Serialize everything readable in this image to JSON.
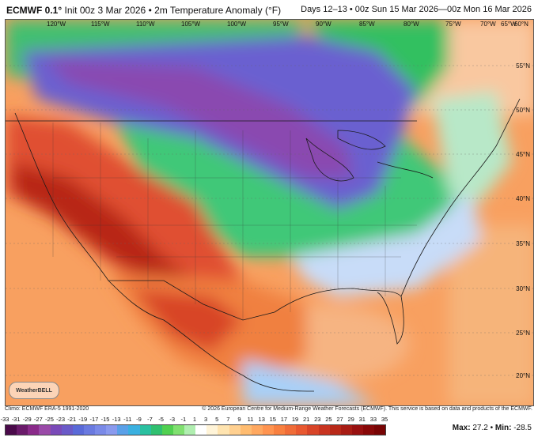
{
  "header": {
    "model": "ECMWF 0.1°",
    "init": "Init 00z 3 Mar 2026",
    "field": "2m Temperature Anomaly (°F)",
    "valid": "Days 12–13 • 00z Sun 15 Mar 2026—00z Mon 16 Mar 2026"
  },
  "map": {
    "lon_labels": [
      "120°W",
      "115°W",
      "110°W",
      "105°W",
      "100°W",
      "95°W",
      "90°W",
      "85°W",
      "80°W",
      "75°W",
      "70°W",
      "65°W",
      "60°N"
    ],
    "lat_labels": [
      "55°N",
      "50°N",
      "45°N",
      "40°N",
      "35°N",
      "30°N",
      "25°N",
      "20°N"
    ],
    "logo_text": "WeatherBELL"
  },
  "footer": {
    "climo": "Climo: ECMWF ERA-5 1991-2020",
    "copyright": "© 2026 European Centre for Medium-Range Weather Forecasts (ECMWF). This service is based on data and products of the ECMWF."
  },
  "legend": {
    "ticks": [
      "-33",
      "-31",
      "-29",
      "-27",
      "-25",
      "-23",
      "-21",
      "-19",
      "-17",
      "-15",
      "-13",
      "-11",
      "-9",
      "-7",
      "-5",
      "-3",
      "-1",
      "1",
      "3",
      "5",
      "7",
      "9",
      "11",
      "13",
      "15",
      "17",
      "19",
      "21",
      "23",
      "25",
      "27",
      "29",
      "31",
      "33",
      "35"
    ],
    "colors": [
      "#4a0a4a",
      "#6a1a6a",
      "#8a2a8a",
      "#9a4aa8",
      "#7a4ab8",
      "#6a5ac8",
      "#5a6ad8",
      "#6a7ae0",
      "#7a8ae8",
      "#8a9aee",
      "#5aa0e8",
      "#3ab0e0",
      "#2ac0a0",
      "#30c070",
      "#50d050",
      "#80e070",
      "#b0eeb0",
      "#ffffff",
      "#fff4d8",
      "#ffe4b0",
      "#ffd090",
      "#ffbc70",
      "#ffa860",
      "#ff9450",
      "#f88040",
      "#f06c38",
      "#e85830",
      "#d84428",
      "#c83420",
      "#b82818",
      "#a81c14",
      "#981010",
      "#880808",
      "#780404"
    ]
  },
  "summary": {
    "max_label": "Max:",
    "max": "27.2",
    "min_label": "Min:",
    "min": "-28.5"
  }
}
